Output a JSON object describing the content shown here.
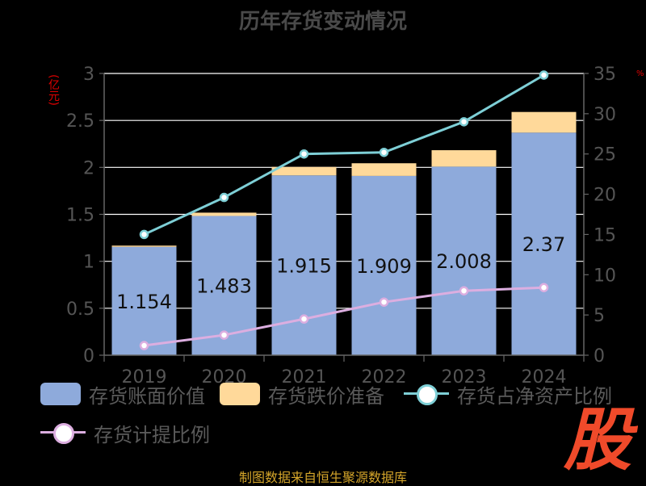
{
  "title": "历年存货变动情况",
  "unit_left": "(亿元)",
  "unit_right": "%",
  "source": "制图数据来自恒生聚源数据库",
  "watermark": "股",
  "colors": {
    "book_value": "#8eaadb",
    "impairment": "#ffd99a",
    "ratio_net_assets": "#7ecfd6",
    "provision_ratio": "#dcaee0",
    "watermark": "#f04a2a"
  },
  "legend": {
    "items": [
      {
        "label": "存货账面价值",
        "kind": "rect",
        "color": "#8eaadb"
      },
      {
        "label": "存货跌价准备",
        "kind": "rect",
        "color": "#ffd99a"
      },
      {
        "label": "存货占净资产比例",
        "kind": "line",
        "color": "#7ecfd6"
      },
      {
        "label": "存货计提比例",
        "kind": "line",
        "color": "#dcaee0"
      }
    ]
  },
  "chart_data": {
    "type": "bar",
    "title": "历年存货变动情况",
    "categories": [
      "2019",
      "2020",
      "2021",
      "2022",
      "2023",
      "2024"
    ],
    "y_left": {
      "label": "(亿元)",
      "min": 0,
      "max": 3,
      "ticks": [
        "0",
        "0.5",
        "1",
        "1.5",
        "2",
        "2.5",
        "3"
      ]
    },
    "y_right": {
      "label": "%",
      "min": 0,
      "max": 35,
      "ticks": [
        "0",
        "5",
        "10",
        "15",
        "20",
        "25",
        "30",
        "35"
      ]
    },
    "grid": true,
    "legend_position": "bottom",
    "series": [
      {
        "name": "存货账面价值",
        "type": "bar",
        "stack": "inv",
        "axis": "left",
        "values": [
          1.154,
          1.483,
          1.915,
          1.909,
          2.008,
          2.37
        ],
        "labels": [
          "1.154",
          "1.483",
          "1.915",
          "1.909",
          "2.008",
          "2.37"
        ]
      },
      {
        "name": "存货跌价准备",
        "type": "bar",
        "stack": "inv",
        "axis": "left",
        "values": [
          0.013,
          0.035,
          0.09,
          0.135,
          0.175,
          0.22
        ]
      },
      {
        "name": "存货占净资产比例",
        "type": "line",
        "axis": "right",
        "values": [
          15.0,
          19.6,
          25.0,
          25.2,
          29.0,
          34.8
        ]
      },
      {
        "name": "存货计提比例",
        "type": "line",
        "axis": "right",
        "values": [
          1.2,
          2.5,
          4.5,
          6.6,
          8.0,
          8.4
        ]
      }
    ]
  }
}
